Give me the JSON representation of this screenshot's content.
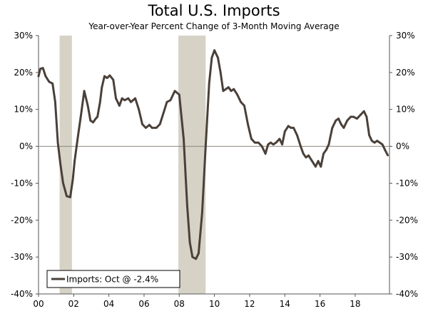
{
  "chart_data": {
    "type": "line",
    "title": "Total U.S. Imports",
    "subtitle": "Year-over-Year Percent Change of 3-Month Moving Average",
    "xlabel": "",
    "ylabel": "",
    "xlim": [
      2000.0,
      2019.95
    ],
    "ylim": [
      -40,
      30
    ],
    "y_ticks": [
      30,
      20,
      10,
      0,
      -10,
      -20,
      -30,
      -40
    ],
    "y_tick_labels": [
      "30%",
      "20%",
      "10%",
      "0%",
      "-10%",
      "-20%",
      "-30%",
      "-40%"
    ],
    "x_ticks": [
      2000,
      2002,
      2004,
      2006,
      2008,
      2010,
      2012,
      2014,
      2016,
      2018
    ],
    "x_tick_labels": [
      "00",
      "02",
      "04",
      "06",
      "08",
      "10",
      "12",
      "14",
      "16",
      "18"
    ],
    "recessions": [
      [
        2001.2,
        2001.9
      ],
      [
        2007.95,
        2009.5
      ]
    ],
    "zero_line": true,
    "legend": {
      "label": "Imports: Oct @ -2.4%",
      "position": "bottom-left"
    },
    "colors": {
      "line": "#4a4039",
      "recession": "#d6d2c6",
      "axis": "#555555",
      "zero_line": "#8c877c"
    },
    "series": [
      {
        "name": "Imports: Oct @ -2.4%",
        "x": [
          2000.0,
          2000.1,
          2000.25,
          2000.4,
          2000.6,
          2000.8,
          2000.95,
          2001.1,
          2001.25,
          2001.4,
          2001.6,
          2001.8,
          2001.95,
          2002.05,
          2002.25,
          2002.4,
          2002.6,
          2002.8,
          2002.95,
          2003.1,
          2003.25,
          2003.35,
          2003.5,
          2003.6,
          2003.75,
          2003.9,
          2004.05,
          2004.25,
          2004.4,
          2004.6,
          2004.75,
          2004.9,
          2005.1,
          2005.25,
          2005.5,
          2005.7,
          2005.9,
          2006.1,
          2006.3,
          2006.45,
          2006.7,
          2006.9,
          2007.1,
          2007.3,
          2007.5,
          2007.75,
          2008.0,
          2008.25,
          2008.45,
          2008.6,
          2008.75,
          2008.95,
          2009.1,
          2009.3,
          2009.5,
          2009.7,
          2009.85,
          2010.0,
          2010.2,
          2010.35,
          2010.5,
          2010.65,
          2010.8,
          2010.95,
          2011.1,
          2011.3,
          2011.5,
          2011.7,
          2011.9,
          2012.1,
          2012.3,
          2012.5,
          2012.7,
          2012.9,
          2013.05,
          2013.2,
          2013.35,
          2013.5,
          2013.7,
          2013.85,
          2014.0,
          2014.2,
          2014.35,
          2014.5,
          2014.7,
          2014.9,
          2015.05,
          2015.2,
          2015.35,
          2015.55,
          2015.75,
          2015.9,
          2016.05,
          2016.2,
          2016.35,
          2016.5,
          2016.7,
          2016.9,
          2017.05,
          2017.2,
          2017.35,
          2017.55,
          2017.75,
          2017.9,
          2018.1,
          2018.3,
          2018.5,
          2018.65,
          2018.8,
          2018.95,
          2019.1,
          2019.25,
          2019.4,
          2019.55,
          2019.7,
          2019.85
        ],
        "values": [
          19.0,
          21.0,
          21.2,
          19.0,
          17.5,
          17.0,
          12.0,
          1.0,
          -5.0,
          -10.0,
          -13.5,
          -13.8,
          -9.0,
          -4.0,
          3.0,
          8.0,
          15.0,
          11.0,
          7.0,
          6.5,
          7.5,
          8.0,
          12.0,
          16.0,
          19.0,
          18.5,
          19.2,
          18.0,
          13.0,
          11.0,
          13.0,
          12.5,
          13.0,
          12.0,
          13.0,
          10.0,
          6.0,
          5.0,
          5.8,
          5.0,
          5.0,
          6.0,
          9.0,
          12.0,
          12.5,
          15.0,
          14.0,
          2.0,
          -16.0,
          -26.0,
          -30.0,
          -30.5,
          -29.0,
          -18.0,
          0.0,
          17.0,
          24.0,
          26.0,
          24.0,
          20.0,
          15.0,
          15.5,
          16.0,
          15.0,
          15.5,
          14.0,
          12.0,
          11.0,
          6.0,
          2.0,
          1.0,
          1.0,
          0.0,
          -2.0,
          0.5,
          1.0,
          0.5,
          1.0,
          2.0,
          0.5,
          4.0,
          5.5,
          5.0,
          5.0,
          3.0,
          0.0,
          -2.0,
          -3.0,
          -2.5,
          -4.0,
          -5.5,
          -4.0,
          -5.5,
          -2.0,
          -1.0,
          0.5,
          5.0,
          7.0,
          7.5,
          6.0,
          5.0,
          7.0,
          8.0,
          8.0,
          7.5,
          8.5,
          9.5,
          8.0,
          3.0,
          1.5,
          1.0,
          1.5,
          1.0,
          0.5,
          -1.0,
          -2.4
        ]
      }
    ]
  }
}
